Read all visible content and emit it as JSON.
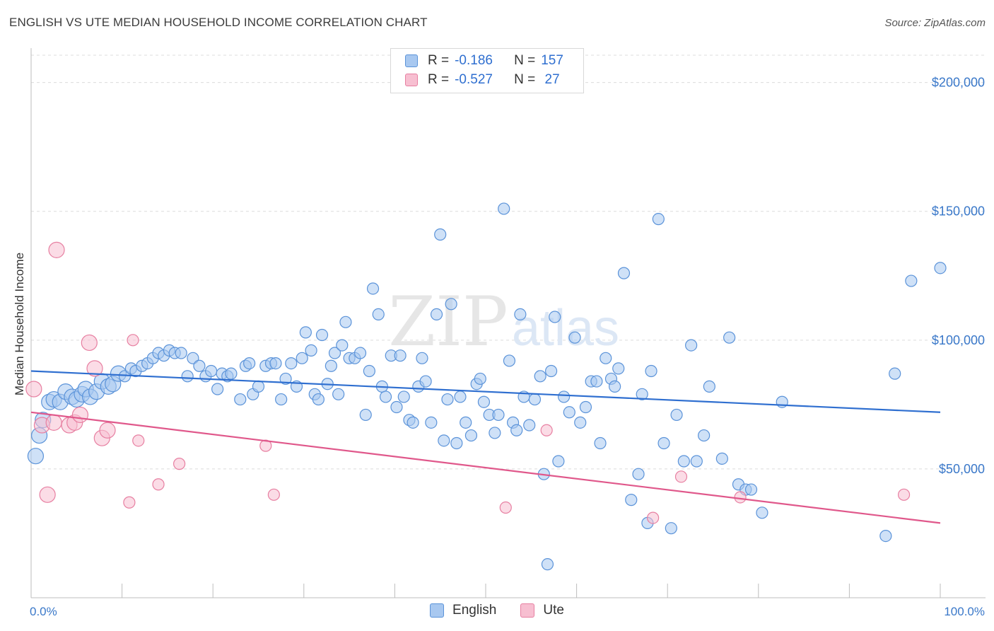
{
  "title": "ENGLISH VS UTE MEDIAN HOUSEHOLD INCOME CORRELATION CHART",
  "source": "Source: ZipAtlas.com",
  "watermark": {
    "zip": "ZIP",
    "atlas": "atlas"
  },
  "legend_top": [
    {
      "r_label": "R =",
      "r_value": "-0.186",
      "n_label": "N =",
      "n_value": "157",
      "color": "#a8c8f0",
      "border": "#5b93d9"
    },
    {
      "r_label": "R =",
      "r_value": "-0.527",
      "n_label": "N =",
      "n_value": " 27",
      "color": "#f7bfd1",
      "border": "#e77fa1"
    }
  ],
  "legend_bottom": [
    {
      "label": "English",
      "color": "#a8c8f0",
      "border": "#5b93d9"
    },
    {
      "label": "Ute",
      "color": "#f7bfd1",
      "border": "#e77fa1"
    }
  ],
  "chart_data": {
    "type": "scatter",
    "title": "ENGLISH VS UTE MEDIAN HOUSEHOLD INCOME CORRELATION CHART",
    "xlabel": "",
    "ylabel": "Median Household Income",
    "xlim": [
      0,
      100
    ],
    "ylim": [
      0,
      215000
    ],
    "x_tick_labels": [
      "0.0%",
      "100.0%"
    ],
    "y_ticks": [
      50000,
      100000,
      150000,
      200000
    ],
    "y_tick_labels": [
      "$50,000",
      "$100,000",
      "$150,000",
      "$200,000"
    ],
    "grid": true,
    "series": [
      {
        "name": "English",
        "color": "#a8c8f0",
        "stroke": "#5b93d9",
        "trend": {
          "x": [
            0,
            100
          ],
          "y": [
            88000,
            72000
          ],
          "color": "#2f6fd0"
        },
        "points": [
          [
            0.5,
            55000
          ],
          [
            0.9,
            63000
          ],
          [
            1.3,
            69000
          ],
          [
            2.0,
            76000
          ],
          [
            2.5,
            77000
          ],
          [
            3.2,
            76000
          ],
          [
            3.8,
            80000
          ],
          [
            4.5,
            78000
          ],
          [
            5.0,
            77000
          ],
          [
            5.6,
            79000
          ],
          [
            6.0,
            81000
          ],
          [
            6.5,
            78000
          ],
          [
            7.2,
            80000
          ],
          [
            7.8,
            84000
          ],
          [
            8.5,
            82000
          ],
          [
            9.0,
            83000
          ],
          [
            9.6,
            87000
          ],
          [
            10.3,
            86000
          ],
          [
            11.0,
            89000
          ],
          [
            11.5,
            88000
          ],
          [
            12.2,
            90000
          ],
          [
            12.8,
            91000
          ],
          [
            13.4,
            93000
          ],
          [
            14.0,
            95000
          ],
          [
            14.6,
            94000
          ],
          [
            15.2,
            96000
          ],
          [
            15.8,
            95000
          ],
          [
            16.5,
            95000
          ],
          [
            17.2,
            86000
          ],
          [
            17.8,
            93000
          ],
          [
            18.5,
            90000
          ],
          [
            19.2,
            86000
          ],
          [
            19.8,
            88000
          ],
          [
            20.5,
            81000
          ],
          [
            21.0,
            87000
          ],
          [
            21.6,
            86000
          ],
          [
            22.0,
            87000
          ],
          [
            23.0,
            77000
          ],
          [
            23.6,
            90000
          ],
          [
            24.0,
            91000
          ],
          [
            24.4,
            79000
          ],
          [
            25.0,
            82000
          ],
          [
            25.8,
            90000
          ],
          [
            26.4,
            91000
          ],
          [
            26.9,
            91000
          ],
          [
            27.5,
            77000
          ],
          [
            28.0,
            85000
          ],
          [
            28.6,
            91000
          ],
          [
            29.2,
            82000
          ],
          [
            29.8,
            93000
          ],
          [
            30.2,
            103000
          ],
          [
            30.8,
            96000
          ],
          [
            31.2,
            79000
          ],
          [
            31.6,
            77000
          ],
          [
            32.0,
            102000
          ],
          [
            32.6,
            83000
          ],
          [
            33.0,
            90000
          ],
          [
            33.4,
            95000
          ],
          [
            33.8,
            79000
          ],
          [
            34.2,
            98000
          ],
          [
            34.6,
            107000
          ],
          [
            35.0,
            93000
          ],
          [
            35.6,
            93000
          ],
          [
            36.2,
            95000
          ],
          [
            36.8,
            71000
          ],
          [
            37.2,
            88000
          ],
          [
            37.6,
            120000
          ],
          [
            38.2,
            110000
          ],
          [
            38.6,
            82000
          ],
          [
            39.0,
            78000
          ],
          [
            39.6,
            94000
          ],
          [
            40.2,
            74000
          ],
          [
            40.6,
            94000
          ],
          [
            41.0,
            78000
          ],
          [
            41.6,
            69000
          ],
          [
            42.0,
            68000
          ],
          [
            42.6,
            82000
          ],
          [
            43.0,
            93000
          ],
          [
            43.4,
            84000
          ],
          [
            44.0,
            68000
          ],
          [
            44.6,
            110000
          ],
          [
            45.0,
            141000
          ],
          [
            45.4,
            61000
          ],
          [
            45.8,
            77000
          ],
          [
            46.2,
            114000
          ],
          [
            46.8,
            60000
          ],
          [
            47.2,
            78000
          ],
          [
            47.8,
            68000
          ],
          [
            48.4,
            63000
          ],
          [
            49.0,
            83000
          ],
          [
            49.4,
            85000
          ],
          [
            49.8,
            76000
          ],
          [
            50.4,
            71000
          ],
          [
            51.0,
            64000
          ],
          [
            51.4,
            71000
          ],
          [
            52.0,
            151000
          ],
          [
            52.6,
            92000
          ],
          [
            53.0,
            68000
          ],
          [
            53.4,
            65000
          ],
          [
            53.8,
            110000
          ],
          [
            54.2,
            78000
          ],
          [
            54.8,
            67000
          ],
          [
            55.4,
            77000
          ],
          [
            56.0,
            86000
          ],
          [
            56.4,
            48000
          ],
          [
            56.8,
            13000
          ],
          [
            57.2,
            88000
          ],
          [
            57.6,
            109000
          ],
          [
            58.0,
            53000
          ],
          [
            58.6,
            78000
          ],
          [
            59.2,
            72000
          ],
          [
            59.8,
            101000
          ],
          [
            60.4,
            68000
          ],
          [
            61.0,
            74000
          ],
          [
            61.6,
            84000
          ],
          [
            62.2,
            84000
          ],
          [
            62.6,
            60000
          ],
          [
            63.2,
            93000
          ],
          [
            63.8,
            85000
          ],
          [
            64.2,
            82000
          ],
          [
            64.6,
            89000
          ],
          [
            65.2,
            126000
          ],
          [
            66.0,
            38000
          ],
          [
            66.8,
            48000
          ],
          [
            67.2,
            79000
          ],
          [
            67.8,
            29000
          ],
          [
            68.2,
            88000
          ],
          [
            69.0,
            147000
          ],
          [
            69.6,
            60000
          ],
          [
            70.4,
            27000
          ],
          [
            71.0,
            71000
          ],
          [
            71.8,
            53000
          ],
          [
            72.6,
            98000
          ],
          [
            73.2,
            53000
          ],
          [
            74.0,
            63000
          ],
          [
            74.6,
            82000
          ],
          [
            76.0,
            54000
          ],
          [
            76.8,
            101000
          ],
          [
            77.8,
            44000
          ],
          [
            78.6,
            42000
          ],
          [
            79.2,
            42000
          ],
          [
            80.4,
            33000
          ],
          [
            82.6,
            76000
          ],
          [
            94.0,
            24000
          ],
          [
            95.0,
            87000
          ],
          [
            96.8,
            123000
          ],
          [
            100.0,
            128000
          ]
        ]
      },
      {
        "name": "Ute",
        "color": "#f7bfd1",
        "stroke": "#e77fa1",
        "trend": {
          "x": [
            0,
            100
          ],
          "y": [
            72000,
            29000
          ],
          "color": "#e0588b"
        },
        "points": [
          [
            0.3,
            81000
          ],
          [
            1.2,
            67000
          ],
          [
            1.8,
            40000
          ],
          [
            2.5,
            68000
          ],
          [
            2.8,
            135000
          ],
          [
            4.2,
            67000
          ],
          [
            4.8,
            68000
          ],
          [
            5.4,
            71000
          ],
          [
            6.4,
            99000
          ],
          [
            7.0,
            89000
          ],
          [
            7.8,
            62000
          ],
          [
            8.4,
            65000
          ],
          [
            10.8,
            37000
          ],
          [
            11.2,
            100000
          ],
          [
            11.8,
            61000
          ],
          [
            14.0,
            44000
          ],
          [
            16.3,
            52000
          ],
          [
            25.8,
            59000
          ],
          [
            26.7,
            40000
          ],
          [
            52.2,
            35000
          ],
          [
            56.7,
            65000
          ],
          [
            68.4,
            31000
          ],
          [
            71.5,
            47000
          ],
          [
            78.0,
            39000
          ],
          [
            96.0,
            40000
          ]
        ]
      }
    ]
  }
}
